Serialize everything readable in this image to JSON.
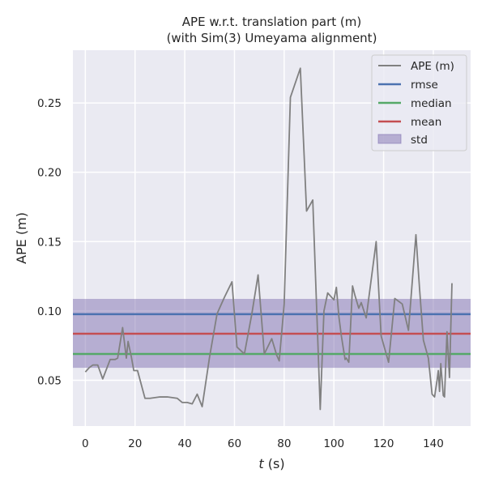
{
  "chart_data": {
    "type": "line",
    "title_lines": [
      "APE w.r.t. translation part (m)",
      "(with Sim(3) Umeyama alignment)"
    ],
    "xlabel_var": "t",
    "xlabel_unit": " (s)",
    "ylabel": "APE (m)",
    "xlim": [
      -5,
      155
    ],
    "ylim": [
      0.017,
      0.288
    ],
    "xticks": [
      0,
      20,
      40,
      60,
      80,
      100,
      120,
      140
    ],
    "yticks": [
      0.05,
      0.1,
      0.15,
      0.2,
      0.25
    ],
    "ytick_labels": [
      "0.05",
      "0.10",
      "0.15",
      "0.20",
      "0.25"
    ],
    "grid": true,
    "legend_position": "top-right",
    "series": [
      {
        "name": "APE (m)",
        "color": "#808080",
        "x": [
          0,
          1.5,
          3,
          5,
          7,
          10,
          12,
          13,
          15,
          16.5,
          17.2,
          18.5,
          19.5,
          21,
          24,
          26,
          30,
          33,
          37,
          39,
          41,
          43,
          45,
          47,
          50,
          53,
          56,
          59,
          61,
          64,
          67,
          69.5,
          72,
          75,
          77,
          78,
          80,
          82.5,
          86.5,
          89,
          91.5,
          93,
          94.5,
          96,
          97.5,
          98.5,
          100,
          101,
          102,
          103,
          104.5,
          105,
          106,
          107.5,
          108.5,
          110,
          111,
          113,
          117,
          119,
          122,
          124.5,
          127.5,
          130,
          133,
          134.5,
          136,
          138,
          139.5,
          140.5,
          141.5,
          142,
          142.5,
          143,
          144,
          144.5,
          145.5,
          146.5,
          147.5
        ],
        "values": [
          0.056,
          0.059,
          0.061,
          0.061,
          0.051,
          0.065,
          0.065,
          0.066,
          0.088,
          0.066,
          0.078,
          0.067,
          0.057,
          0.057,
          0.037,
          0.037,
          0.038,
          0.038,
          0.037,
          0.034,
          0.034,
          0.033,
          0.04,
          0.031,
          0.067,
          0.098,
          0.11,
          0.121,
          0.074,
          0.069,
          0.098,
          0.126,
          0.069,
          0.08,
          0.068,
          0.064,
          0.105,
          0.254,
          0.275,
          0.172,
          0.18,
          0.105,
          0.029,
          0.1,
          0.113,
          0.111,
          0.108,
          0.117,
          0.096,
          0.082,
          0.065,
          0.066,
          0.063,
          0.118,
          0.111,
          0.102,
          0.106,
          0.095,
          0.15,
          0.082,
          0.063,
          0.109,
          0.105,
          0.086,
          0.155,
          0.115,
          0.079,
          0.066,
          0.04,
          0.038,
          0.05,
          0.057,
          0.042,
          0.062,
          0.039,
          0.038,
          0.085,
          0.052,
          0.12
        ]
      }
    ],
    "hlines": [
      {
        "name": "rmse",
        "value": 0.0977,
        "color": "#4c72b0"
      },
      {
        "name": "median",
        "value": 0.069,
        "color": "#55a868"
      },
      {
        "name": "mean",
        "value": 0.0836,
        "color": "#c44e52"
      }
    ],
    "band": {
      "name": "std",
      "lower": 0.059,
      "upper": 0.1087,
      "color": "#8172b2"
    }
  }
}
